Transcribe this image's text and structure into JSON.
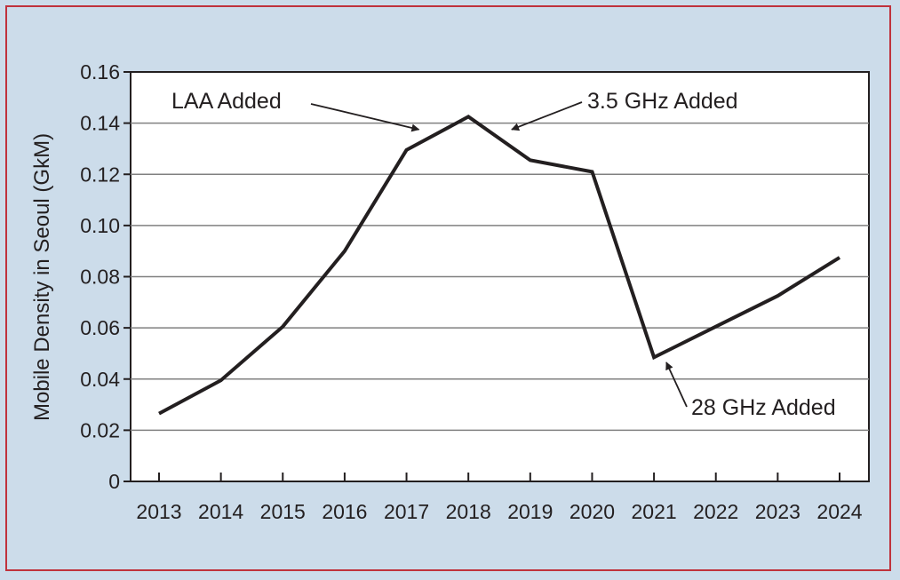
{
  "colors": {
    "background": "#ccdcea",
    "frame_border": "#c0323c",
    "plot_background": "#ffffff",
    "line": "#231f20",
    "grid": "#808080"
  },
  "chart_data": {
    "type": "line",
    "title": "",
    "xlabel": "",
    "ylabel": "Mobile Density in Seoul (GkM)",
    "ylim": [
      0,
      0.16
    ],
    "yticks": [
      0,
      0.02,
      0.04,
      0.06,
      0.08,
      0.1,
      0.12,
      0.14,
      0.16
    ],
    "ytick_labels": [
      "0",
      "0.02",
      "0.04",
      "0.06",
      "0.08",
      "0.10",
      "0.12",
      "0.14",
      "0.16"
    ],
    "x": [
      2013,
      2014,
      2015,
      2016,
      2017,
      2018,
      2019,
      2020,
      2021,
      2022,
      2023,
      2024
    ],
    "xtick_labels": [
      "2013",
      "2014",
      "2015",
      "2016",
      "2017",
      "2018",
      "2019",
      "2020",
      "2021",
      "2022",
      "2023",
      "2024"
    ],
    "series": [
      {
        "values": [
          0.0265,
          0.0395,
          0.0605,
          0.09,
          0.1295,
          0.1425,
          0.1255,
          0.121,
          0.0485,
          0.0605,
          0.0725,
          0.0875
        ]
      }
    ],
    "grid": "horizontal",
    "legend": "none",
    "annotations": [
      {
        "text": "LAA Added",
        "x": 2017.2,
        "y": 0.1375
      },
      {
        "text": "3.5 GHz Added",
        "x": 2018.7,
        "y": 0.1375
      },
      {
        "text": "28 GHz Added",
        "x": 2021.2,
        "y": 0.0465
      }
    ]
  }
}
